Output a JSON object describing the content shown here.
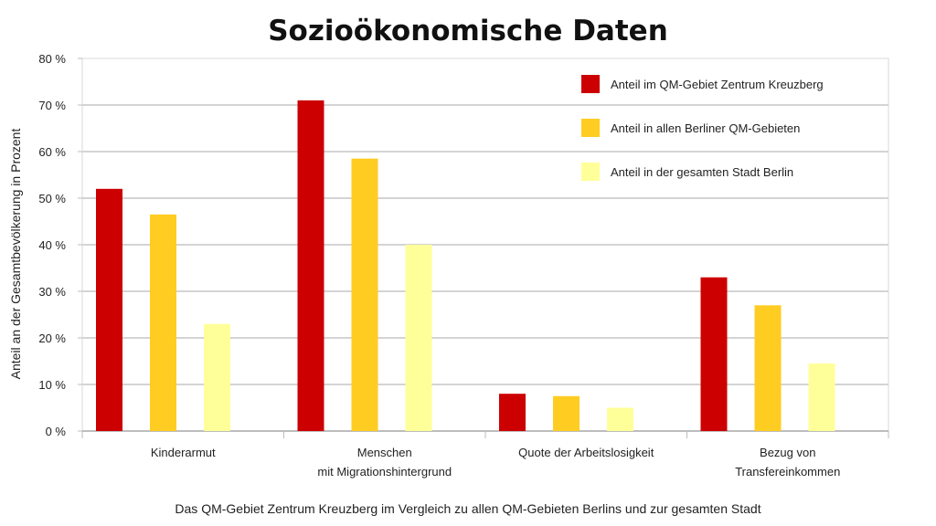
{
  "chart_data": {
    "type": "bar",
    "title": "Sozioökonomische Daten",
    "ylabel": "Anteil an der Gesamtbevölkerung in Prozent",
    "caption": "Das QM-Gebiet Zentrum Kreuzberg im Vergleich zu allen QM-Gebieten Berlins und zur gesamten Stadt",
    "ylim": [
      0,
      80
    ],
    "yticks": [
      {
        "value": 0,
        "label": "0 %"
      },
      {
        "value": 10,
        "label": "10 %"
      },
      {
        "value": 20,
        "label": "20 %"
      },
      {
        "value": 30,
        "label": "30 %"
      },
      {
        "value": 40,
        "label": "40 %"
      },
      {
        "value": 50,
        "label": "50 %"
      },
      {
        "value": 60,
        "label": "60 %"
      },
      {
        "value": 70,
        "label": "70 %"
      },
      {
        "value": 80,
        "label": "80 %"
      }
    ],
    "grid": true,
    "legend_position": "top-right",
    "categories": [
      [
        "Kinderarmut"
      ],
      [
        "Menschen",
        "mit Migrationshintergrund"
      ],
      [
        "Quote der Arbeitslosigkeit"
      ],
      [
        "Bezug von",
        "Transfereinkommen"
      ]
    ],
    "series": [
      {
        "name": "Anteil im QM-Gebiet Zentrum Kreuzberg",
        "color": "#cc0000",
        "values": [
          52,
          71,
          8,
          33
        ]
      },
      {
        "name": "Anteil in allen Berliner QM-Gebieten",
        "color": "#ffcc22",
        "values": [
          46.5,
          58.5,
          7.5,
          27
        ]
      },
      {
        "name": "Anteil in der gesamten Stadt  Berlin",
        "color": "#ffff99",
        "values": [
          23,
          40,
          5,
          14.5
        ]
      }
    ]
  }
}
